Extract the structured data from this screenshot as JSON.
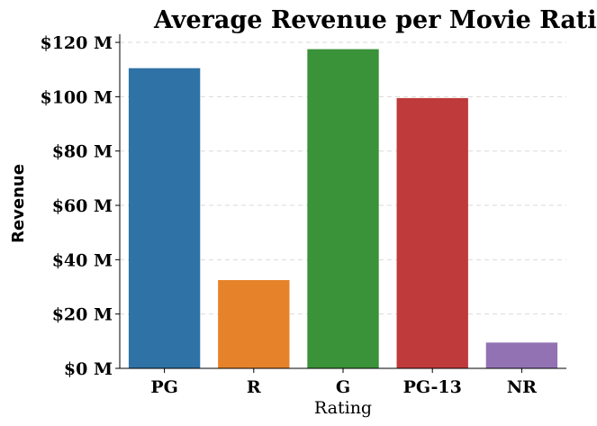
{
  "chart_data": {
    "type": "bar",
    "title": "Average Revenue per Movie Rating",
    "xlabel": "Rating",
    "ylabel": "Revenue",
    "categories": [
      "PG",
      "R",
      "G",
      "PG-13",
      "NR"
    ],
    "values": [
      110.5,
      32.5,
      117.5,
      99.5,
      9.5
    ],
    "colors": [
      "#2e72a6",
      "#e6832a",
      "#3a9239",
      "#bf3a3a",
      "#9272b3"
    ],
    "ylim": [
      0,
      123
    ],
    "yticks": [
      0,
      20,
      40,
      60,
      80,
      100,
      120
    ],
    "ytick_labels": [
      "$0 M",
      "$20 M",
      "$40 M",
      "$60 M",
      "$80 M",
      "$100 M",
      "$120 M"
    ],
    "grid": true
  }
}
